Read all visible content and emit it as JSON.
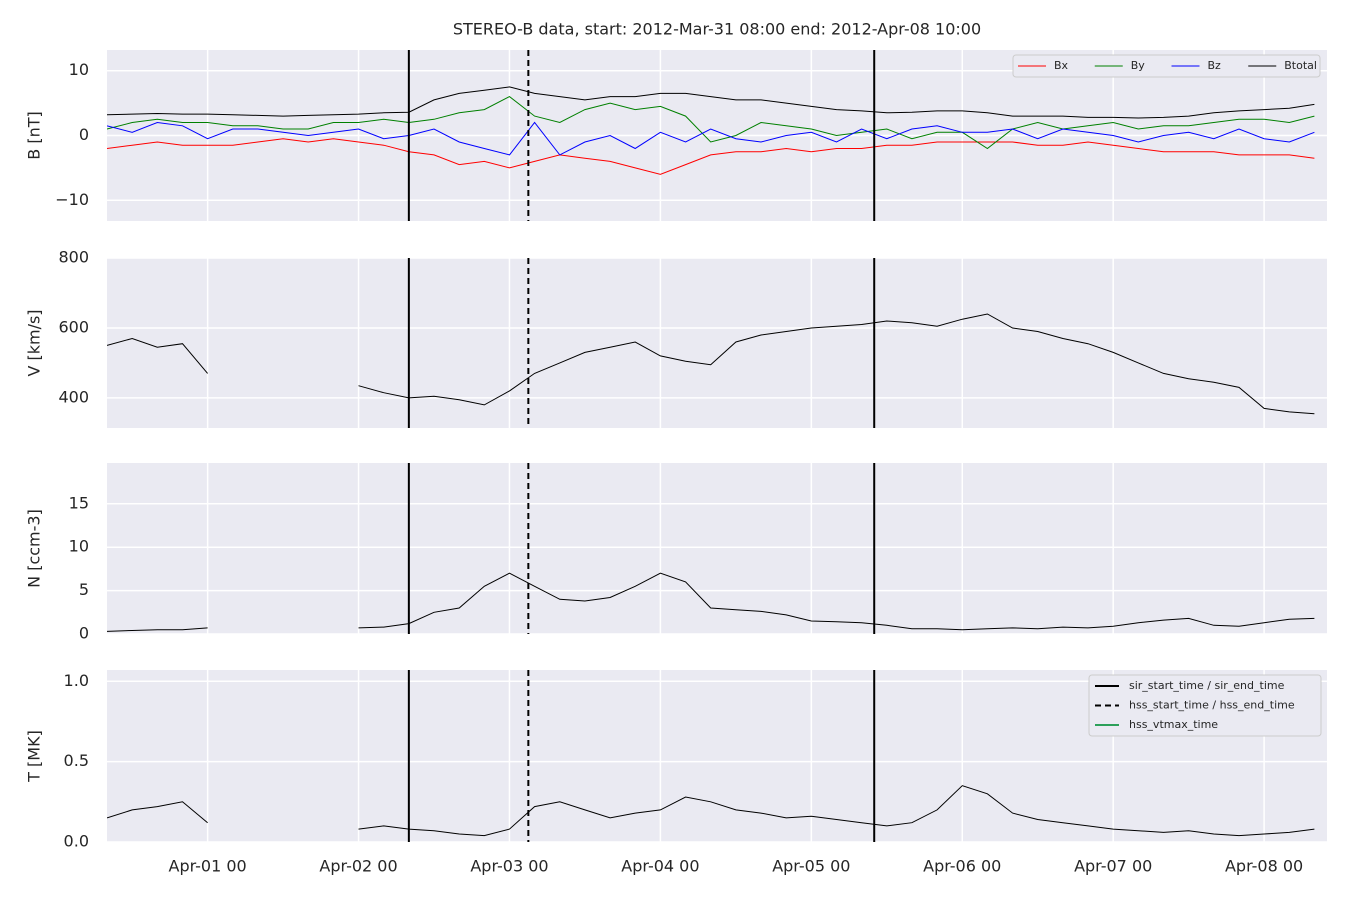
{
  "chart_data": [
    {
      "type": "line",
      "title": "STEREO-B data, start: 2012-Mar-31 08:00  end: 2012-Apr-08 10:00",
      "ylabel": "B [nT]",
      "x": [
        "Mar-31 08",
        "Mar-31 12",
        "Mar-31 16",
        "Mar-31 20",
        "Apr-01 00",
        "Apr-01 04",
        "Apr-01 08",
        "Apr-01 12",
        "Apr-01 16",
        "Apr-01 20",
        "Apr-02 00",
        "Apr-02 04",
        "Apr-02 08",
        "Apr-02 12",
        "Apr-02 16",
        "Apr-02 20",
        "Apr-03 00",
        "Apr-03 04",
        "Apr-03 08",
        "Apr-03 12",
        "Apr-03 16",
        "Apr-03 20",
        "Apr-04 00",
        "Apr-04 04",
        "Apr-04 08",
        "Apr-04 12",
        "Apr-04 16",
        "Apr-04 20",
        "Apr-05 00",
        "Apr-05 04",
        "Apr-05 08",
        "Apr-05 12",
        "Apr-05 16",
        "Apr-05 20",
        "Apr-06 00",
        "Apr-06 04",
        "Apr-06 08",
        "Apr-06 12",
        "Apr-06 16",
        "Apr-06 20",
        "Apr-07 00",
        "Apr-07 04",
        "Apr-07 08",
        "Apr-07 12",
        "Apr-07 16",
        "Apr-07 20",
        "Apr-08 00",
        "Apr-08 04",
        "Apr-08 08"
      ],
      "xlim": [
        "Mar-31 08",
        "Apr-08 10"
      ],
      "ylim": [
        -13.2,
        13.2
      ],
      "yticks": [
        {
          "value": -10,
          "label": "−10"
        },
        0,
        10
      ],
      "grid": true,
      "legend": "upper right",
      "series": [
        {
          "name": "Bx",
          "color": "#ff0000",
          "values": [
            -2,
            -1.5,
            -1,
            -1.5,
            -1.5,
            -1.5,
            -1,
            -0.5,
            -1,
            -0.5,
            -1,
            -1.5,
            -2.5,
            -3,
            -4.5,
            -4,
            -5,
            -4,
            -3,
            -3.5,
            -4,
            -5,
            -6,
            -4.5,
            -3,
            -2.5,
            -2.5,
            -2,
            -2.5,
            -2,
            -2,
            -1.5,
            -1.5,
            -1,
            -1,
            -1,
            -1,
            -1.5,
            -1.5,
            -1,
            -1.5,
            -2,
            -2.5,
            -2.5,
            -2.5,
            -3,
            -3,
            -3,
            -3.5
          ]
        },
        {
          "name": "By",
          "color": "#008000",
          "values": [
            1,
            2,
            2.5,
            2,
            2,
            1.5,
            1.5,
            1,
            1,
            2,
            2,
            2.5,
            2,
            2.5,
            3.5,
            4,
            6,
            3,
            2,
            4,
            5,
            4,
            4.5,
            3,
            -1,
            0,
            2,
            1.5,
            1,
            0,
            0.5,
            1,
            -0.5,
            0.5,
            0.5,
            -2,
            1,
            2,
            1,
            1.5,
            2,
            1,
            1.5,
            1.5,
            2,
            2.5,
            2.5,
            2,
            3
          ]
        },
        {
          "name": "Bz",
          "color": "#0000ff",
          "values": [
            1.5,
            0.5,
            2,
            1.5,
            -0.5,
            1,
            1,
            0.5,
            0,
            0.5,
            1,
            -0.5,
            0,
            1,
            -1,
            -2,
            -3,
            2,
            -3,
            -1,
            0,
            -2,
            0.5,
            -1,
            1,
            -0.5,
            -1,
            0,
            0.5,
            -1,
            1,
            -0.5,
            1,
            1.5,
            0.5,
            0.5,
            1,
            -0.5,
            1,
            0.5,
            0,
            -1,
            0,
            0.5,
            -0.5,
            1,
            -0.5,
            -1,
            0.5
          ]
        },
        {
          "name": "Btotal",
          "color": "#000000",
          "values": [
            3.2,
            3.3,
            3.4,
            3.3,
            3.3,
            3.2,
            3.1,
            3.0,
            3.1,
            3.2,
            3.3,
            3.5,
            3.6,
            5.5,
            6.5,
            7.0,
            7.5,
            6.5,
            6.0,
            5.5,
            6.0,
            6.0,
            6.5,
            6.5,
            6.0,
            5.5,
            5.5,
            5.0,
            4.5,
            4.0,
            3.8,
            3.5,
            3.6,
            3.8,
            3.8,
            3.5,
            3.0,
            3.0,
            3.0,
            2.8,
            2.8,
            2.7,
            2.8,
            3.0,
            3.5,
            3.8,
            4.0,
            4.2,
            4.8
          ]
        }
      ]
    },
    {
      "type": "line",
      "ylabel": "V [km/s]",
      "x": [
        "Mar-31 08",
        "Mar-31 12",
        "Mar-31 16",
        "Mar-31 20",
        "Apr-01 00",
        "Apr-01 04",
        "Apr-01 08",
        "Apr-01 12",
        "Apr-01 16",
        "Apr-01 20",
        "Apr-02 00",
        "Apr-02 04",
        "Apr-02 08",
        "Apr-02 12",
        "Apr-02 16",
        "Apr-02 20",
        "Apr-03 00",
        "Apr-03 04",
        "Apr-03 08",
        "Apr-03 12",
        "Apr-03 16",
        "Apr-03 20",
        "Apr-04 00",
        "Apr-04 04",
        "Apr-04 08",
        "Apr-04 12",
        "Apr-04 16",
        "Apr-04 20",
        "Apr-05 00",
        "Apr-05 04",
        "Apr-05 08",
        "Apr-05 12",
        "Apr-05 16",
        "Apr-05 20",
        "Apr-06 00",
        "Apr-06 04",
        "Apr-06 08",
        "Apr-06 12",
        "Apr-06 16",
        "Apr-06 20",
        "Apr-07 00",
        "Apr-07 04",
        "Apr-07 08",
        "Apr-07 12",
        "Apr-07 16",
        "Apr-07 20",
        "Apr-08 00",
        "Apr-08 04",
        "Apr-08 08"
      ],
      "xlim": [
        "Mar-31 08",
        "Apr-08 10"
      ],
      "ylim": [
        314,
        800
      ],
      "yticks": [
        400,
        600,
        800
      ],
      "grid": true,
      "series": [
        {
          "color": "#000000",
          "values": [
            550,
            570,
            545,
            555,
            470,
            null,
            null,
            null,
            null,
            null,
            435,
            415,
            400,
            405,
            395,
            380,
            420,
            470,
            500,
            530,
            545,
            560,
            520,
            505,
            495,
            560,
            580,
            590,
            600,
            605,
            610,
            620,
            615,
            605,
            625,
            640,
            600,
            590,
            570,
            555,
            530,
            500,
            470,
            455,
            445,
            430,
            370,
            360,
            355
          ]
        }
      ]
    },
    {
      "type": "line",
      "ylabel": "N [ccm-3]",
      "x": [
        "Mar-31 08",
        "Mar-31 12",
        "Mar-31 16",
        "Mar-31 20",
        "Apr-01 00",
        "Apr-01 04",
        "Apr-01 08",
        "Apr-01 12",
        "Apr-01 16",
        "Apr-01 20",
        "Apr-02 00",
        "Apr-02 04",
        "Apr-02 08",
        "Apr-02 12",
        "Apr-02 16",
        "Apr-02 20",
        "Apr-03 00",
        "Apr-03 04",
        "Apr-03 08",
        "Apr-03 12",
        "Apr-03 16",
        "Apr-03 20",
        "Apr-04 00",
        "Apr-04 04",
        "Apr-04 08",
        "Apr-04 12",
        "Apr-04 16",
        "Apr-04 20",
        "Apr-05 00",
        "Apr-05 04",
        "Apr-05 08",
        "Apr-05 12",
        "Apr-05 16",
        "Apr-05 20",
        "Apr-06 00",
        "Apr-06 04",
        "Apr-06 08",
        "Apr-06 12",
        "Apr-06 16",
        "Apr-06 20",
        "Apr-07 00",
        "Apr-07 04",
        "Apr-07 08",
        "Apr-07 12",
        "Apr-07 16",
        "Apr-07 20",
        "Apr-08 00",
        "Apr-08 04",
        "Apr-08 08"
      ],
      "xlim": [
        "Mar-31 08",
        "Apr-08 10"
      ],
      "ylim": [
        0,
        19.7
      ],
      "yticks": [
        0,
        5,
        10,
        15
      ],
      "grid": true,
      "series": [
        {
          "color": "#000000",
          "values": [
            0.3,
            0.4,
            0.5,
            0.5,
            0.7,
            null,
            null,
            null,
            null,
            null,
            0.7,
            0.8,
            1.2,
            2.5,
            3.0,
            5.5,
            7.0,
            5.5,
            4.0,
            3.8,
            4.2,
            5.5,
            7.0,
            6.0,
            3.0,
            2.8,
            2.6,
            2.2,
            1.5,
            1.4,
            1.3,
            1.0,
            0.6,
            0.6,
            0.5,
            0.6,
            0.7,
            0.6,
            0.8,
            0.7,
            0.9,
            1.3,
            1.6,
            1.8,
            1.0,
            0.9,
            1.3,
            1.7,
            1.8
          ]
        }
      ]
    },
    {
      "type": "line",
      "ylabel": "T [MK]",
      "x": [
        "Mar-31 08",
        "Mar-31 12",
        "Mar-31 16",
        "Mar-31 20",
        "Apr-01 00",
        "Apr-01 04",
        "Apr-01 08",
        "Apr-01 12",
        "Apr-01 16",
        "Apr-01 20",
        "Apr-02 00",
        "Apr-02 04",
        "Apr-02 08",
        "Apr-02 12",
        "Apr-02 16",
        "Apr-02 20",
        "Apr-03 00",
        "Apr-03 04",
        "Apr-03 08",
        "Apr-03 12",
        "Apr-03 16",
        "Apr-03 20",
        "Apr-04 00",
        "Apr-04 04",
        "Apr-04 08",
        "Apr-04 12",
        "Apr-04 16",
        "Apr-04 20",
        "Apr-05 00",
        "Apr-05 04",
        "Apr-05 08",
        "Apr-05 12",
        "Apr-05 16",
        "Apr-05 20",
        "Apr-06 00",
        "Apr-06 04",
        "Apr-06 08",
        "Apr-06 12",
        "Apr-06 16",
        "Apr-06 20",
        "Apr-07 00",
        "Apr-07 04",
        "Apr-07 08",
        "Apr-07 12",
        "Apr-07 16",
        "Apr-07 20",
        "Apr-08 00",
        "Apr-08 04",
        "Apr-08 08"
      ],
      "xlim": [
        "Mar-31 08",
        "Apr-08 10"
      ],
      "ylim": [
        0,
        1.07
      ],
      "yticks": [
        {
          "value": 0,
          "label": "0.0"
        },
        0.5,
        {
          "value": 1,
          "label": "1.0"
        }
      ],
      "grid": true,
      "legend": "upper right",
      "xticks": [
        {
          "value": "Apr-01 00",
          "label": "Apr-01 00"
        },
        {
          "value": "Apr-02 00",
          "label": "Apr-02 00"
        },
        {
          "value": "Apr-03 00",
          "label": "Apr-03 00"
        },
        {
          "value": "Apr-04 00",
          "label": "Apr-04 00"
        },
        {
          "value": "Apr-05 00",
          "label": "Apr-05 00"
        },
        {
          "value": "Apr-06 00",
          "label": "Apr-06 00"
        },
        {
          "value": "Apr-07 00",
          "label": "Apr-07 00"
        },
        {
          "value": "Apr-08 00",
          "label": "Apr-08 00"
        }
      ],
      "markers": [
        {
          "name": "sir_start_time / sir_end_time",
          "color": "#000000",
          "dash": "solid",
          "x": [
            "Apr-02 08",
            "Apr-05 10"
          ]
        },
        {
          "name": "hss_start_time / hss_end_time",
          "color": "#000000",
          "dash": "dashed",
          "x": [
            "Apr-03 03"
          ]
        },
        {
          "name": "hss_vtmax_time",
          "color": "#2ca05a",
          "dash": "solid",
          "x": []
        }
      ],
      "series": [
        {
          "color": "#000000",
          "values": [
            0.15,
            0.2,
            0.22,
            0.25,
            0.12,
            null,
            null,
            null,
            null,
            null,
            0.08,
            0.1,
            0.08,
            0.07,
            0.05,
            0.04,
            0.08,
            0.22,
            0.25,
            0.2,
            0.15,
            0.18,
            0.2,
            0.28,
            0.25,
            0.2,
            0.18,
            0.15,
            0.16,
            0.14,
            0.12,
            0.1,
            0.12,
            0.2,
            0.35,
            0.3,
            0.18,
            0.14,
            0.12,
            0.1,
            0.08,
            0.07,
            0.06,
            0.07,
            0.05,
            0.04,
            0.05,
            0.06,
            0.08
          ]
        }
      ]
    }
  ]
}
